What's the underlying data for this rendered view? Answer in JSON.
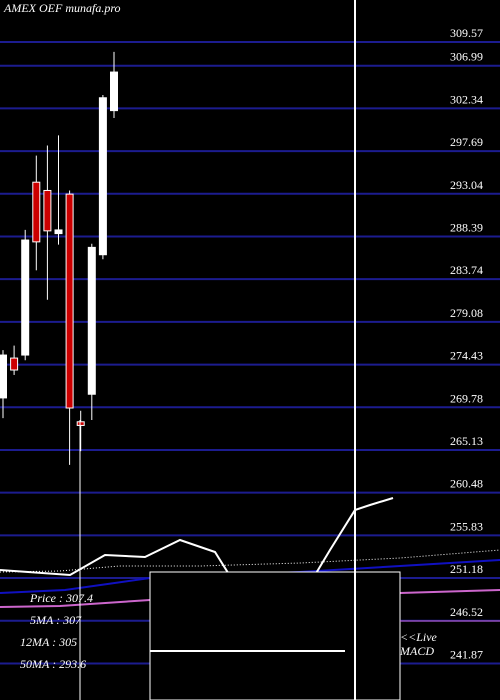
{
  "chart_data": {
    "type": "candlestick",
    "title": "AMEX  OEF munafa.pro",
    "open": [
      270.8,
      275.14,
      275.47,
      294.3,
      293.4,
      288.7,
      293.0,
      268.2,
      271.2,
      286.4,
      302.1
    ],
    "high": [
      276.0,
      276.5,
      289.1,
      297.2,
      298.3,
      299.4,
      293.4,
      269.4,
      287.6,
      303.8,
      308.5
    ],
    "low": [
      268.6,
      273.3,
      274.9,
      284.7,
      281.5,
      287.5,
      263.5,
      265.0,
      268.4,
      285.9,
      301.3
    ],
    "close": [
      275.47,
      273.84,
      288.0,
      287.8,
      289.0,
      289.1,
      269.7,
      267.8,
      287.2,
      303.5,
      306.3
    ],
    "up_color": "#ffffff",
    "down_color": "#cc0000",
    "ylim": [
      237.89,
      314.15
    ],
    "yticks": [
      309.57,
      306.99,
      302.34,
      297.69,
      293.04,
      288.39,
      283.74,
      279.08,
      274.43,
      269.78,
      265.13,
      260.48,
      255.83,
      251.18,
      246.52,
      241.87
    ],
    "grid": true,
    "grid_color": "#1c1c8f",
    "legend": [
      "Price  : 307.4",
      "5MA : 307",
      "12MA : 305",
      "50MA : 293.6"
    ],
    "macd_label": "<<Live MACD"
  }
}
